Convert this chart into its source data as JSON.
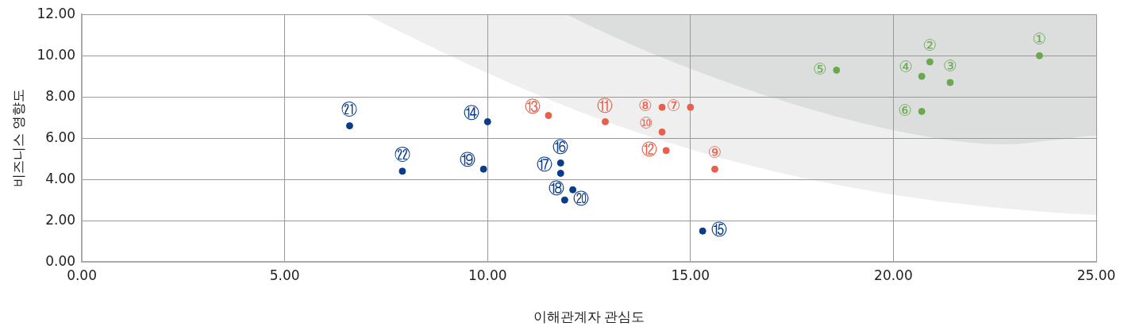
{
  "chart_data": {
    "type": "scatter",
    "xlabel": "이해관계자 관심도",
    "ylabel": "비즈니스 영향도",
    "xlim": [
      0,
      25
    ],
    "ylim": [
      0,
      12
    ],
    "xticks": [
      {
        "value": 0,
        "label": "0.00"
      },
      {
        "value": 5,
        "label": "5.00"
      },
      {
        "value": 10,
        "label": "10.00"
      },
      {
        "value": 15,
        "label": "15.00"
      },
      {
        "value": 20,
        "label": "20.00"
      },
      {
        "value": 25,
        "label": "25.00"
      }
    ],
    "yticks": [
      {
        "value": 0,
        "label": "0.00"
      },
      {
        "value": 2,
        "label": "2.00"
      },
      {
        "value": 4,
        "label": "4.00"
      },
      {
        "value": 6,
        "label": "6.00"
      },
      {
        "value": 8,
        "label": "8.00"
      },
      {
        "value": 10,
        "label": "10.00"
      },
      {
        "value": 12,
        "label": "12.00"
      }
    ],
    "grid": true,
    "legend": false,
    "marker": "circle",
    "series": [
      {
        "color": "#6aa84f",
        "x": [
          23.6,
          20.9,
          21.4,
          20.7,
          18.6,
          20.7
        ],
        "values": [
          10.0,
          9.7,
          8.7,
          9.0,
          9.3,
          7.3
        ]
      },
      {
        "color": "#e8604c",
        "x": [
          15.0,
          14.3,
          15.6,
          14.3,
          12.9,
          14.4,
          11.5
        ],
        "values": [
          7.5,
          7.5,
          4.5,
          6.3,
          6.8,
          5.4,
          7.1
        ]
      },
      {
        "color": "#0a3c8c",
        "x": [
          10.0,
          15.3,
          11.8,
          11.8,
          12.1,
          9.9,
          11.9,
          6.6,
          7.9
        ],
        "values": [
          6.8,
          1.5,
          4.8,
          4.3,
          3.5,
          4.5,
          3.0,
          6.6,
          4.4
        ]
      }
    ],
    "annotations": [
      {
        "text": "①",
        "x": 23.6,
        "y": 10.0
      },
      {
        "text": "②",
        "x": 20.9,
        "y": 9.7
      },
      {
        "text": "③",
        "x": 21.4,
        "y": 8.7
      },
      {
        "text": "④",
        "x": 20.7,
        "y": 9.0
      },
      {
        "text": "⑤",
        "x": 18.6,
        "y": 9.3
      },
      {
        "text": "⑥",
        "x": 20.7,
        "y": 7.3
      },
      {
        "text": "⑦",
        "x": 15.0,
        "y": 7.5
      },
      {
        "text": "⑧",
        "x": 14.3,
        "y": 7.5
      },
      {
        "text": "⑨",
        "x": 15.6,
        "y": 4.5
      },
      {
        "text": "⑩",
        "x": 14.3,
        "y": 6.3
      },
      {
        "text": "⑪",
        "x": 12.9,
        "y": 6.8
      },
      {
        "text": "⑫",
        "x": 14.4,
        "y": 5.4
      },
      {
        "text": "⑬",
        "x": 11.5,
        "y": 7.1
      },
      {
        "text": "⑭",
        "x": 10.0,
        "y": 6.8
      },
      {
        "text": "⑮",
        "x": 15.3,
        "y": 1.5
      },
      {
        "text": "⑯",
        "x": 11.8,
        "y": 4.8
      },
      {
        "text": "⑰",
        "x": 11.8,
        "y": 4.3
      },
      {
        "text": "⑱",
        "x": 12.1,
        "y": 3.5
      },
      {
        "text": "⑲",
        "x": 9.9,
        "y": 4.5
      },
      {
        "text": "⑳",
        "x": 11.9,
        "y": 3.0
      },
      {
        "text": "㉑",
        "x": 6.6,
        "y": 6.6
      },
      {
        "text": "㉒",
        "x": 7.9,
        "y": 4.4
      }
    ]
  }
}
